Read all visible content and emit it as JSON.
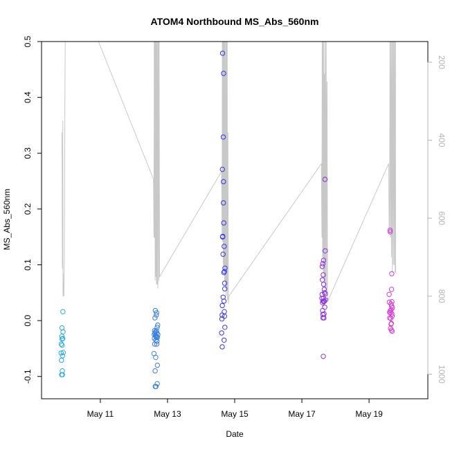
{
  "chart_data": {
    "type": "scatter",
    "title": "ATOM4 Northbound MS_Abs_560nm",
    "xlabel": "Date",
    "ylabel": "MS_Abs_560nm",
    "x_unit": "days",
    "xlim": [
      "2018-05-09T06:00",
      "2018-05-20T18:00"
    ],
    "ylim": [
      -0.14,
      0.5
    ],
    "y_ticks": [
      -0.1,
      0.0,
      0.1,
      0.2,
      0.3,
      0.4,
      0.5
    ],
    "x_ticks": [
      {
        "date": "2018-05-11T00:00",
        "label": "May 11"
      },
      {
        "date": "2018-05-13T00:00",
        "label": "May 13"
      },
      {
        "date": "2018-05-15T00:00",
        "label": "May 15"
      },
      {
        "date": "2018-05-17T00:00",
        "label": "May 17"
      },
      {
        "date": "2018-05-19T00:00",
        "label": "May 19"
      }
    ],
    "y2_axis": {
      "side": "right",
      "reversed": true,
      "lim": [
        147,
        1063
      ],
      "ticks": [
        200,
        400,
        600,
        800,
        1000
      ],
      "color": "#b4b4b4"
    },
    "grid": false,
    "legend": "none",
    "altitude_trace": {
      "color": "#c8c8c8",
      "points": [
        [
          "2018-05-09T20:30",
          380
        ],
        [
          "2018-05-09T20:40",
          440
        ],
        [
          "2018-05-09T20:50",
          720
        ],
        [
          "2018-05-09T21:00",
          730
        ],
        [
          "2018-05-09T21:10",
          350
        ],
        [
          "2018-05-09T21:20",
          800
        ],
        [
          "2018-05-09T21:30",
          740
        ],
        [
          "2018-05-09T21:40",
          800
        ],
        [
          "2018-05-09T22:00",
          800
        ],
        [
          "2018-05-09T22:20",
          700
        ],
        [
          "2018-05-09T22:40",
          300
        ],
        [
          "2018-05-09T23:00",
          100
        ],
        [
          "2018-05-10T13:00",
          60
        ],
        [
          "2018-05-12T14:00",
          500
        ],
        [
          "2018-05-12T14:20",
          650
        ],
        [
          "2018-05-12T14:30",
          100
        ],
        [
          "2018-05-12T14:40",
          650
        ],
        [
          "2018-05-12T15:00",
          100
        ],
        [
          "2018-05-12T15:10",
          760
        ],
        [
          "2018-05-12T15:20",
          100
        ],
        [
          "2018-05-12T15:40",
          750
        ],
        [
          "2018-05-12T15:50",
          100
        ],
        [
          "2018-05-12T16:10",
          770
        ],
        [
          "2018-05-12T16:20",
          100
        ],
        [
          "2018-05-12T16:40",
          770
        ],
        [
          "2018-05-12T17:00",
          100
        ],
        [
          "2018-05-12T17:10",
          780
        ],
        [
          "2018-05-12T17:30",
          100
        ],
        [
          "2018-05-12T17:50",
          760
        ],
        [
          "2018-05-12T18:00",
          100
        ],
        [
          "2018-05-12T18:20",
          750
        ],
        [
          "2018-05-14T14:40",
          480
        ],
        [
          "2018-05-14T15:00",
          640
        ],
        [
          "2018-05-14T15:10",
          100
        ],
        [
          "2018-05-14T15:20",
          660
        ],
        [
          "2018-05-14T15:30",
          100
        ],
        [
          "2018-05-14T15:50",
          720
        ],
        [
          "2018-05-14T16:00",
          100
        ],
        [
          "2018-05-14T16:20",
          740
        ],
        [
          "2018-05-14T16:30",
          100
        ],
        [
          "2018-05-14T16:50",
          760
        ],
        [
          "2018-05-14T17:00",
          100
        ],
        [
          "2018-05-14T17:20",
          780
        ],
        [
          "2018-05-14T17:40",
          100
        ],
        [
          "2018-05-14T17:50",
          800
        ],
        [
          "2018-05-14T18:10",
          100
        ],
        [
          "2018-05-14T18:20",
          780
        ],
        [
          "2018-05-14T18:40",
          100
        ],
        [
          "2018-05-14T18:50",
          810
        ],
        [
          "2018-05-14T19:10",
          380
        ],
        [
          "2018-05-14T19:30",
          820
        ],
        [
          "2018-05-14T19:50",
          800
        ],
        [
          "2018-05-17T14:00",
          460
        ],
        [
          "2018-05-17T14:20",
          650
        ],
        [
          "2018-05-17T14:30",
          100
        ],
        [
          "2018-05-17T14:50",
          700
        ],
        [
          "2018-05-17T15:00",
          100
        ],
        [
          "2018-05-17T15:20",
          740
        ],
        [
          "2018-05-17T15:40",
          100
        ],
        [
          "2018-05-17T15:50",
          760
        ],
        [
          "2018-05-17T16:10",
          230
        ],
        [
          "2018-05-17T16:20",
          780
        ],
        [
          "2018-05-17T16:40",
          100
        ],
        [
          "2018-05-17T17:00",
          800
        ],
        [
          "2018-05-17T17:20",
          100
        ],
        [
          "2018-05-17T17:40",
          780
        ],
        [
          "2018-05-17T18:00",
          250
        ],
        [
          "2018-05-17T18:20",
          800
        ],
        [
          "2018-05-17T18:50",
          810
        ],
        [
          "2018-05-19T14:00",
          460
        ],
        [
          "2018-05-19T14:20",
          620
        ],
        [
          "2018-05-19T14:40",
          640
        ],
        [
          "2018-05-19T15:00",
          100
        ],
        [
          "2018-05-19T15:20",
          650
        ],
        [
          "2018-05-19T15:40",
          100
        ],
        [
          "2018-05-19T16:00",
          700
        ],
        [
          "2018-05-19T16:20",
          100
        ],
        [
          "2018-05-19T16:40",
          740
        ],
        [
          "2018-05-19T17:00",
          100
        ],
        [
          "2018-05-19T17:20",
          720
        ],
        [
          "2018-05-19T17:40",
          100
        ],
        [
          "2018-05-19T18:00",
          720
        ],
        [
          "2018-05-19T18:20",
          100
        ],
        [
          "2018-05-19T18:40",
          740
        ],
        [
          "2018-05-19T18:50",
          100
        ],
        [
          "2018-05-19T19:00",
          740
        ]
      ]
    },
    "series": [
      {
        "color": "#2aa8e6",
        "points": [
          [
            "2018-05-09T20:00",
            -0.058
          ],
          [
            "2018-05-09T20:10",
            -0.042
          ],
          [
            "2018-05-09T20:15",
            -0.071
          ],
          [
            "2018-05-09T20:20",
            -0.097
          ],
          [
            "2018-05-09T20:30",
            -0.028
          ],
          [
            "2018-05-09T20:35",
            -0.013
          ],
          [
            "2018-05-09T20:40",
            -0.033
          ],
          [
            "2018-05-09T20:45",
            -0.044
          ],
          [
            "2018-05-09T20:50",
            -0.09
          ],
          [
            "2018-05-09T20:55",
            -0.097
          ],
          [
            "2018-05-09T21:00",
            -0.063
          ],
          [
            "2018-05-09T21:10",
            -0.032
          ],
          [
            "2018-05-09T21:15",
            0.016
          ],
          [
            "2018-05-09T21:20",
            -0.02
          ],
          [
            "2018-05-09T21:30",
            -0.057
          ]
        ]
      },
      {
        "color": "#3a7de0",
        "points": [
          [
            "2018-05-12T14:20",
            -0.059
          ],
          [
            "2018-05-12T14:30",
            -0.025
          ],
          [
            "2018-05-12T14:40",
            -0.032
          ],
          [
            "2018-05-12T14:45",
            -0.018
          ],
          [
            "2018-05-12T14:50",
            -0.042
          ],
          [
            "2018-05-12T15:00",
            0.005
          ],
          [
            "2018-05-12T15:05",
            -0.022
          ],
          [
            "2018-05-12T15:10",
            -0.09
          ],
          [
            "2018-05-12T15:15",
            -0.118
          ],
          [
            "2018-05-12T15:20",
            0.018
          ],
          [
            "2018-05-12T15:25",
            -0.027
          ],
          [
            "2018-05-12T15:30",
            -0.02
          ],
          [
            "2018-05-12T15:35",
            -0.066
          ],
          [
            "2018-05-12T15:40",
            -0.035
          ],
          [
            "2018-05-12T15:45",
            -0.118
          ],
          [
            "2018-05-12T15:50",
            -0.028
          ],
          [
            "2018-05-12T16:00",
            0.01
          ],
          [
            "2018-05-12T16:05",
            -0.018
          ],
          [
            "2018-05-12T16:10",
            -0.03
          ],
          [
            "2018-05-12T16:15",
            0.014
          ],
          [
            "2018-05-12T16:20",
            -0.042
          ],
          [
            "2018-05-12T16:25",
            -0.022
          ],
          [
            "2018-05-12T16:30",
            -0.037
          ],
          [
            "2018-05-12T16:35",
            -0.012
          ],
          [
            "2018-05-12T16:40",
            -0.113
          ],
          [
            "2018-05-12T16:45",
            -0.08
          ],
          [
            "2018-05-12T16:50",
            -0.03
          ],
          [
            "2018-05-12T17:00",
            -0.008
          ],
          [
            "2018-05-12T17:05",
            -0.025
          ],
          [
            "2018-05-12T16:00",
            -0.03
          ]
        ]
      },
      {
        "color": "#3636e6",
        "points": [
          [
            "2018-05-14T14:40",
            -0.022
          ],
          [
            "2018-05-14T14:50",
            0.003
          ],
          [
            "2018-05-14T15:00",
            0.01
          ],
          [
            "2018-05-14T15:05",
            -0.047
          ],
          [
            "2018-05-14T15:10",
            0.027
          ],
          [
            "2018-05-14T15:15",
            0.271
          ],
          [
            "2018-05-14T15:20",
            0.479
          ],
          [
            "2018-05-14T15:30",
            0.151
          ],
          [
            "2018-05-14T15:40",
            0.119
          ],
          [
            "2018-05-14T15:45",
            0.042
          ],
          [
            "2018-05-14T15:50",
            0.329
          ],
          [
            "2018-05-14T15:55",
            0.211
          ],
          [
            "2018-05-14T16:00",
            0.249
          ],
          [
            "2018-05-14T16:05",
            0.443
          ],
          [
            "2018-05-14T16:10",
            0.175
          ],
          [
            "2018-05-14T16:15",
            0.086
          ],
          [
            "2018-05-14T16:20",
            0.035
          ],
          [
            "2018-05-14T16:25",
            -0.035
          ],
          [
            "2018-05-14T16:30",
            0.133
          ],
          [
            "2018-05-14T16:35",
            0.016
          ],
          [
            "2018-05-14T16:40",
            0.088
          ],
          [
            "2018-05-14T16:45",
            0.008
          ],
          [
            "2018-05-14T16:50",
            0.067
          ],
          [
            "2018-05-14T16:55",
            0.057
          ],
          [
            "2018-05-14T17:00",
            -0.012
          ],
          [
            "2018-05-14T17:05",
            0.094
          ],
          [
            "2018-05-14T15:25",
            0.15
          ]
        ]
      },
      {
        "color": "#8a2ee0",
        "points": [
          [
            "2018-05-17T14:20",
            0.04
          ],
          [
            "2018-05-17T14:30",
            0.047
          ],
          [
            "2018-05-17T14:35",
            0.097
          ],
          [
            "2018-05-17T14:40",
            0.073
          ],
          [
            "2018-05-17T14:45",
            0.032
          ],
          [
            "2018-05-17T14:50",
            0.018
          ],
          [
            "2018-05-17T14:55",
            0.102
          ],
          [
            "2018-05-17T15:00",
            0.011
          ],
          [
            "2018-05-17T15:05",
            0.005
          ],
          [
            "2018-05-17T15:10",
            0.035
          ],
          [
            "2018-05-17T15:15",
            0.082
          ],
          [
            "2018-05-17T15:20",
            -0.064
          ],
          [
            "2018-05-17T15:25",
            0.04
          ],
          [
            "2018-05-17T15:30",
            0.108
          ],
          [
            "2018-05-17T15:35",
            0.065
          ],
          [
            "2018-05-17T15:40",
            0.034
          ],
          [
            "2018-05-17T15:45",
            0.005
          ],
          [
            "2018-05-17T15:50",
            0.012
          ],
          [
            "2018-05-17T16:00",
            0.056
          ],
          [
            "2018-05-17T16:05",
            0.035
          ],
          [
            "2018-05-17T16:10",
            0.05
          ],
          [
            "2018-05-17T16:20",
            0.024
          ],
          [
            "2018-05-17T16:30",
            0.253
          ],
          [
            "2018-05-17T16:40",
            0.125
          ],
          [
            "2018-05-17T16:45",
            0.048
          ],
          [
            "2018-05-17T16:50",
            0.037
          ]
        ]
      },
      {
        "color": "#d23cd2",
        "points": [
          [
            "2018-05-19T14:20",
            0.047
          ],
          [
            "2018-05-19T14:30",
            0.033
          ],
          [
            "2018-05-19T14:40",
            0.015
          ],
          [
            "2018-05-19T14:45",
            0.005
          ],
          [
            "2018-05-19T15:00",
            0.162
          ],
          [
            "2018-05-19T15:05",
            0.159
          ],
          [
            "2018-05-19T15:10",
            0.018
          ],
          [
            "2018-05-19T15:20",
            -0.014
          ],
          [
            "2018-05-19T15:25",
            0.014
          ],
          [
            "2018-05-19T15:30",
            0.004
          ],
          [
            "2018-05-19T15:40",
            0.03
          ],
          [
            "2018-05-19T15:45",
            -0.006
          ],
          [
            "2018-05-19T15:50",
            0.02
          ],
          [
            "2018-05-19T16:00",
            -0.017
          ],
          [
            "2018-05-19T16:05",
            0.056
          ],
          [
            "2018-05-19T16:10",
            0.026
          ],
          [
            "2018-05-19T16:15",
            0.084
          ],
          [
            "2018-05-19T16:20",
            0.034
          ],
          [
            "2018-05-19T16:25",
            -0.019
          ],
          [
            "2018-05-19T16:30",
            0.008
          ],
          [
            "2018-05-19T16:40",
            0.023
          ],
          [
            "2018-05-19T15:55",
            -0.005
          ],
          [
            "2018-05-19T16:20",
            0.012
          ]
        ]
      }
    ]
  }
}
